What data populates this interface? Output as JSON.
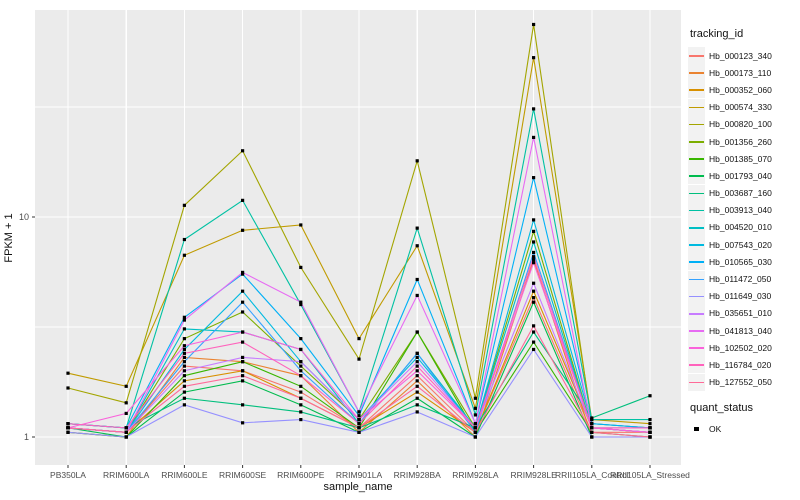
{
  "figure": {
    "x_axis_title": "sample_name",
    "y_axis_title": "FPKM + 1",
    "legend": {
      "tracking_title": "tracking_id",
      "quant_title": "quant_status",
      "quant_items": [
        {
          "label": "OK",
          "marker": "black-square"
        }
      ]
    },
    "colors": {
      "panel_bg": "#EBEBEB",
      "grid": "#FFFFFF",
      "tick": "#333333",
      "axis_text": "#4D4D4D",
      "legend_key_bg": "#F2F2F2",
      "point": "#000000"
    }
  },
  "chart_data": {
    "type": "line",
    "title": "",
    "xlabel": "sample_name",
    "ylabel": "FPKM + 1",
    "yscale": "log10",
    "ylim": [
      0.75,
      87
    ],
    "yticks": [
      1,
      10
    ],
    "minor_gridlines": [
      3.162,
      31.62
    ],
    "grid": true,
    "legend_position": "right",
    "point_marker": "square",
    "categories": [
      "PB350LA",
      "RRIM600LA",
      "RRIM600LE",
      "RRIM600SE",
      "RRIM600PE",
      "RRIM901LA",
      "RRIM928BA",
      "RRIM928LA",
      "RRIM928LE",
      "RRII105LA_Control",
      "RRII105LA_Stressed"
    ],
    "series": [
      {
        "name": "Hb_000123_340",
        "color": "#F8766D",
        "values": [
          1.1,
          1.05,
          2.1,
          2.0,
          1.6,
          1.1,
          1.9,
          1.05,
          4.3,
          1.05,
          1.05
        ]
      },
      {
        "name": "Hb_000173_110",
        "color": "#EA8331",
        "values": [
          1.05,
          1.0,
          2.3,
          2.2,
          1.9,
          1.05,
          1.8,
          1.0,
          6.4,
          1.0,
          1.0
        ]
      },
      {
        "name": "Hb_000352_060",
        "color": "#D89000",
        "values": [
          1.1,
          1.05,
          1.8,
          2.0,
          1.5,
          1.1,
          1.6,
          1.05,
          4.6,
          1.1,
          1.05
        ]
      },
      {
        "name": "Hb_000574_330",
        "color": "#C09B00",
        "values": [
          1.95,
          1.7,
          6.7,
          8.7,
          9.2,
          2.8,
          7.4,
          1.35,
          53.0,
          1.2,
          1.15
        ]
      },
      {
        "name": "Hb_000820_100",
        "color": "#A3A500",
        "values": [
          1.67,
          1.43,
          11.3,
          20.0,
          5.9,
          2.26,
          18.0,
          1.5,
          75.0,
          1.15,
          1.1
        ]
      },
      {
        "name": "Hb_001356_260",
        "color": "#7CAE00",
        "values": [
          1.1,
          1.05,
          2.8,
          3.7,
          2.1,
          1.2,
          3.0,
          1.1,
          8.6,
          1.1,
          1.05
        ]
      },
      {
        "name": "Hb_001385_070",
        "color": "#39B600",
        "values": [
          1.05,
          1.0,
          1.9,
          2.2,
          1.7,
          1.1,
          3.0,
          1.05,
          2.7,
          1.05,
          1.0
        ]
      },
      {
        "name": "Hb_001793_040",
        "color": "#00BB4E",
        "values": [
          1.1,
          1.0,
          1.6,
          1.8,
          1.4,
          1.05,
          1.5,
          1.0,
          4.1,
          1.0,
          1.0
        ]
      },
      {
        "name": "Hb_003687_160",
        "color": "#00BF7D",
        "values": [
          1.15,
          1.1,
          1.5,
          1.4,
          1.3,
          1.1,
          1.4,
          1.1,
          3.0,
          1.22,
          1.54
        ]
      },
      {
        "name": "Hb_003913_040",
        "color": "#00C1A3",
        "values": [
          1.15,
          1.1,
          7.9,
          11.9,
          4.0,
          1.3,
          8.9,
          1.26,
          31.0,
          1.2,
          1.2
        ]
      },
      {
        "name": "Hb_004520_010",
        "color": "#00BFC4",
        "values": [
          1.1,
          1.05,
          3.1,
          3.0,
          2.5,
          1.15,
          2.4,
          1.1,
          7.7,
          1.1,
          1.1
        ]
      },
      {
        "name": "Hb_007543_020",
        "color": "#00BAE0",
        "values": [
          1.1,
          1.05,
          2.5,
          4.6,
          2.2,
          1.2,
          2.3,
          1.1,
          9.7,
          1.15,
          1.1
        ]
      },
      {
        "name": "Hb_010565_030",
        "color": "#00B0F6",
        "values": [
          1.15,
          1.1,
          3.5,
          5.5,
          2.8,
          1.25,
          5.2,
          1.15,
          15.1,
          1.15,
          1.1
        ]
      },
      {
        "name": "Hb_011472_050",
        "color": "#35A2FF",
        "values": [
          1.1,
          1.05,
          2.2,
          4.1,
          2.0,
          1.15,
          2.4,
          1.05,
          6.9,
          1.1,
          1.05
        ]
      },
      {
        "name": "Hb_011649_030",
        "color": "#9590FF",
        "values": [
          1.05,
          1.0,
          1.4,
          1.16,
          1.2,
          1.05,
          1.3,
          1.0,
          2.5,
          1.0,
          1.0
        ]
      },
      {
        "name": "Hb_035651_010",
        "color": "#C77CFF",
        "values": [
          1.1,
          1.05,
          2.0,
          2.3,
          2.2,
          1.2,
          2.2,
          1.1,
          5.0,
          1.1,
          1.05
        ]
      },
      {
        "name": "Hb_041813_040",
        "color": "#E76BF3",
        "values": [
          1.1,
          1.05,
          3.4,
          5.6,
          4.1,
          1.3,
          4.4,
          1.15,
          23.0,
          1.1,
          1.1
        ]
      },
      {
        "name": "Hb_102502_020",
        "color": "#FA62DB",
        "values": [
          1.1,
          1.28,
          2.6,
          3.0,
          2.5,
          1.2,
          2.0,
          1.1,
          6.2,
          1.1,
          1.05
        ]
      },
      {
        "name": "Hb_116784_020",
        "color": "#FF62BC",
        "values": [
          1.15,
          1.1,
          2.4,
          2.7,
          1.9,
          1.15,
          2.1,
          1.1,
          6.6,
          1.1,
          1.1
        ]
      },
      {
        "name": "Hb_127552_050",
        "color": "#FF6A98",
        "values": [
          1.1,
          1.05,
          1.7,
          1.9,
          1.5,
          1.1,
          1.7,
          1.05,
          3.2,
          1.05,
          1.0
        ]
      }
    ]
  }
}
